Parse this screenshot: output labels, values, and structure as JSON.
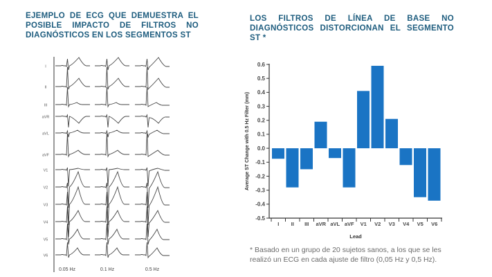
{
  "left_panel": {
    "title": "EJEMPLO DE ECG QUE DEMUESTRA EL POSIBLE IMPACTO DE FILTROS NO DIAGNÓSTICOS EN LOS SEGMENTOS ST",
    "ecg": {
      "leads": [
        "I",
        "II",
        "III",
        "aVR",
        "aVL",
        "aVF",
        "V1",
        "V2",
        "V3",
        "V4",
        "V5",
        "V6"
      ],
      "filter_labels": [
        "0.05 Hz",
        "0.1 Hz",
        "0.5 Hz"
      ]
    }
  },
  "right_panel": {
    "title": "LOS FILTROS DE LÍNEA DE BASE NO DIAGNÓSTICOS DISTORCIONAN EL SEGMENTO ST *",
    "footnote": "* Basado en un grupo de 20 sujetos sanos, a los que se les realizó un ECG en cada ajuste de filtro (0,05 Hz y 0,5 Hz)."
  },
  "colors": {
    "title": "#1d5c7e",
    "bar": "#1a74c4",
    "axis": "#333333",
    "trace": "#444444"
  },
  "chart_data": {
    "type": "bar",
    "title": "",
    "xlabel": "Lead",
    "ylabel": "Average ST Change with 0.5 Hz Filter (mm)",
    "categories": [
      "I",
      "II",
      "III",
      "aVR",
      "aVL",
      "aVF",
      "V1",
      "V2",
      "V3",
      "V4",
      "V5",
      "V6"
    ],
    "values": [
      -0.075,
      -0.28,
      -0.15,
      0.19,
      -0.07,
      -0.28,
      0.41,
      0.59,
      0.21,
      -0.12,
      -0.35,
      -0.375
    ],
    "ylim": [
      -0.5,
      0.6
    ],
    "yticks": [
      0.6,
      0.5,
      0.4,
      0.3,
      0.2,
      0.1,
      0.0,
      -0.1,
      -0.2,
      -0.3,
      -0.4,
      -0.5
    ],
    "ytick_labels": [
      "0.6",
      "0.5",
      "0.4",
      "0.3",
      "0.2",
      "0.1",
      "0.0",
      "-0.1",
      "-0.2",
      "-0.3",
      "-0.4",
      "-0.5"
    ],
    "grid": false,
    "legend": "none"
  }
}
